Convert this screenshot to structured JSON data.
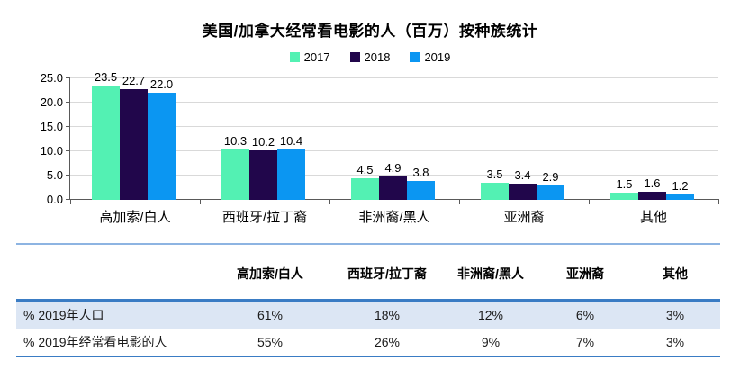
{
  "chart_data": {
    "type": "bar",
    "title": "美国/加拿大经常看电影的人（百万）按种族统计",
    "categories": [
      "高加索/白人",
      "西班牙/拉丁裔",
      "非洲裔/黑人",
      "亚洲裔",
      "其他"
    ],
    "series": [
      {
        "name": "2017",
        "color": "#53f1b3",
        "values": [
          23.5,
          10.3,
          4.5,
          3.5,
          1.5
        ]
      },
      {
        "name": "2018",
        "color": "#21064b",
        "values": [
          22.7,
          10.2,
          4.9,
          3.4,
          1.6
        ]
      },
      {
        "name": "2019",
        "color": "#0b96f2",
        "values": [
          22.0,
          10.4,
          3.8,
          2.9,
          1.2
        ]
      }
    ],
    "ylabel": "",
    "xlabel": "",
    "ylim": [
      0,
      25
    ],
    "ytick_labels": [
      "0.0",
      "5.0",
      "10.0",
      "15.0",
      "20.0",
      "25.0"
    ],
    "grid": true,
    "legend_position": "top",
    "value_labels_shown": true
  },
  "table": {
    "columns": [
      "高加索/白人",
      "西班牙/拉丁裔",
      "非洲裔/黑人",
      "亚洲裔",
      "其他"
    ],
    "rows": [
      {
        "label": "% 2019年人口",
        "values": [
          "61%",
          "18%",
          "12%",
          "6%",
          "3%"
        ]
      },
      {
        "label": "% 2019年经常看电影的人",
        "values": [
          "55%",
          "26%",
          "9%",
          "7%",
          "3%"
        ]
      }
    ]
  },
  "colors": {
    "accent_line": "#3a7cc4",
    "light_divider": "#8db4e2",
    "striped_row_bg": "#dce6f4",
    "gridline": "#d9d9d9",
    "axis": "#595959"
  }
}
